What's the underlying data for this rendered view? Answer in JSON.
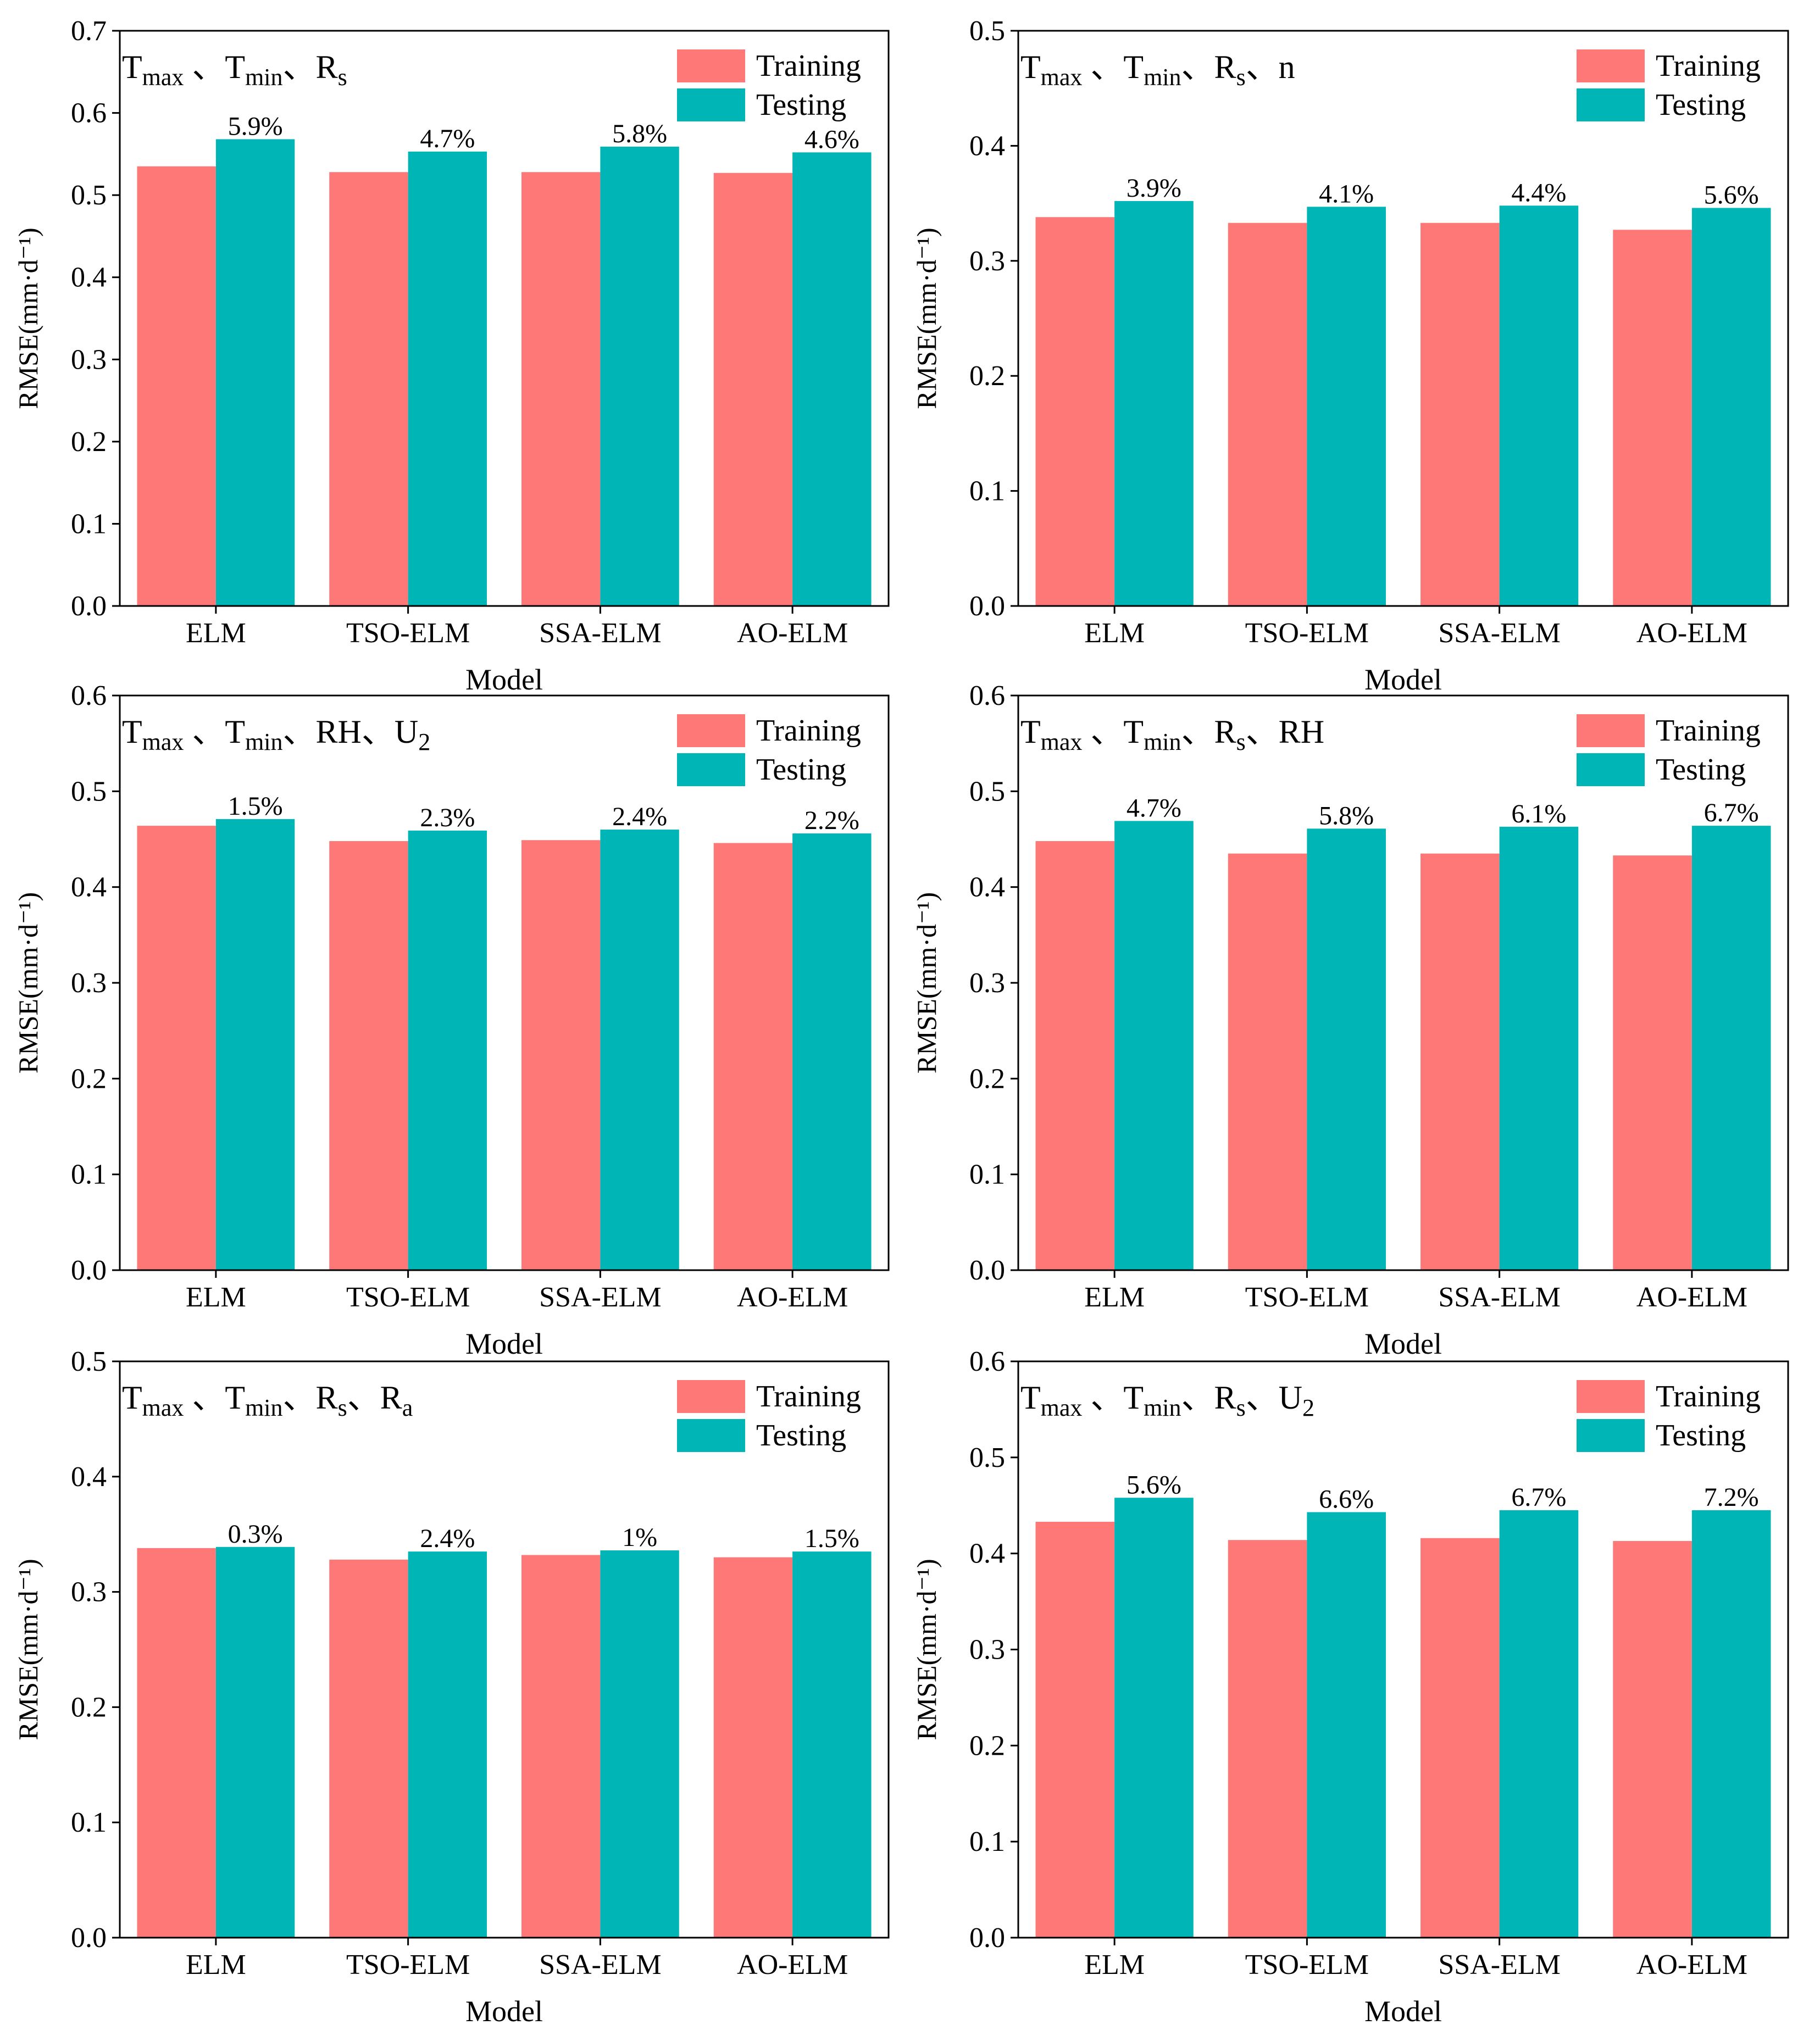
{
  "colors": {
    "training": "#ff7878",
    "testing": "#00b5b5",
    "axis": "#000000"
  },
  "chart_data": [
    {
      "type": "bar",
      "title": [
        {
          "t": "T"
        },
        {
          "t": "max",
          "sub": true
        },
        {
          "t": " 、T"
        },
        {
          "t": "min",
          "sub": true
        },
        {
          "t": "、R"
        },
        {
          "t": "s",
          "sub": true
        }
      ],
      "xlabel": "Model",
      "ylabel": "RMSE(mm·d⁻¹)",
      "ylim": [
        0,
        0.7
      ],
      "yticks": [
        "0.0",
        "0.1",
        "0.2",
        "0.3",
        "0.4",
        "0.5",
        "0.6",
        "0.7"
      ],
      "categories": [
        "ELM",
        "TSO-ELM",
        "SSA-ELM",
        "AO-ELM"
      ],
      "legend": [
        "Training",
        "Testing"
      ],
      "series": [
        {
          "name": "Training",
          "values": [
            0.535,
            0.528,
            0.528,
            0.527
          ]
        },
        {
          "name": "Testing",
          "values": [
            0.568,
            0.553,
            0.559,
            0.552
          ]
        }
      ],
      "labels": [
        "5.9%",
        "4.7%",
        "5.8%",
        "4.6%"
      ]
    },
    {
      "type": "bar",
      "title": [
        {
          "t": "T"
        },
        {
          "t": "max",
          "sub": true
        },
        {
          "t": " 、T"
        },
        {
          "t": "min",
          "sub": true
        },
        {
          "t": "、R"
        },
        {
          "t": "s",
          "sub": true
        },
        {
          "t": "、n"
        }
      ],
      "xlabel": "Model",
      "ylabel": "RMSE(mm·d⁻¹)",
      "ylim": [
        0,
        0.5
      ],
      "yticks": [
        "0.0",
        "0.1",
        "0.2",
        "0.3",
        "0.4",
        "0.5"
      ],
      "categories": [
        "ELM",
        "TSO-ELM",
        "SSA-ELM",
        "AO-ELM"
      ],
      "legend": [
        "Training",
        "Testing"
      ],
      "series": [
        {
          "name": "Training",
          "values": [
            0.338,
            0.333,
            0.333,
            0.327
          ]
        },
        {
          "name": "Testing",
          "values": [
            0.352,
            0.347,
            0.348,
            0.346
          ]
        }
      ],
      "labels": [
        "3.9%",
        "4.1%",
        "4.4%",
        "5.6%"
      ]
    },
    {
      "type": "bar",
      "title": [
        {
          "t": "T"
        },
        {
          "t": "max",
          "sub": true
        },
        {
          "t": " 、T"
        },
        {
          "t": "min",
          "sub": true
        },
        {
          "t": "、RH、U"
        },
        {
          "t": "2",
          "sub": true
        }
      ],
      "xlabel": "Model",
      "ylabel": "RMSE(mm·d⁻¹)",
      "ylim": [
        0,
        0.6
      ],
      "yticks": [
        "0.0",
        "0.1",
        "0.2",
        "0.3",
        "0.4",
        "0.5",
        "0.6"
      ],
      "categories": [
        "ELM",
        "TSO-ELM",
        "SSA-ELM",
        "AO-ELM"
      ],
      "legend": [
        "Training",
        "Testing"
      ],
      "series": [
        {
          "name": "Training",
          "values": [
            0.464,
            0.448,
            0.449,
            0.446
          ]
        },
        {
          "name": "Testing",
          "values": [
            0.471,
            0.459,
            0.46,
            0.456
          ]
        }
      ],
      "labels": [
        "1.5%",
        "2.3%",
        "2.4%",
        "2.2%"
      ]
    },
    {
      "type": "bar",
      "title": [
        {
          "t": "T"
        },
        {
          "t": "max",
          "sub": true
        },
        {
          "t": " 、T"
        },
        {
          "t": "min",
          "sub": true
        },
        {
          "t": "、R"
        },
        {
          "t": "s",
          "sub": true
        },
        {
          "t": "、RH"
        }
      ],
      "xlabel": "Model",
      "ylabel": "RMSE(mm·d⁻¹)",
      "ylim": [
        0,
        0.6
      ],
      "yticks": [
        "0.0",
        "0.1",
        "0.2",
        "0.3",
        "0.4",
        "0.5",
        "0.6"
      ],
      "categories": [
        "ELM",
        "TSO-ELM",
        "SSA-ELM",
        "AO-ELM"
      ],
      "legend": [
        "Training",
        "Testing"
      ],
      "series": [
        {
          "name": "Training",
          "values": [
            0.448,
            0.435,
            0.435,
            0.433
          ]
        },
        {
          "name": "Testing",
          "values": [
            0.469,
            0.461,
            0.463,
            0.464
          ]
        }
      ],
      "labels": [
        "4.7%",
        "5.8%",
        "6.1%",
        "6.7%"
      ]
    },
    {
      "type": "bar",
      "title": [
        {
          "t": "T"
        },
        {
          "t": "max",
          "sub": true
        },
        {
          "t": " 、T"
        },
        {
          "t": "min",
          "sub": true
        },
        {
          "t": "、R"
        },
        {
          "t": "s",
          "sub": true
        },
        {
          "t": "、R"
        },
        {
          "t": "a",
          "sub": true
        }
      ],
      "xlabel": "Model",
      "ylabel": "RMSE(mm·d⁻¹)",
      "ylim": [
        0,
        0.5
      ],
      "yticks": [
        "0.0",
        "0.1",
        "0.2",
        "0.3",
        "0.4",
        "0.5"
      ],
      "categories": [
        "ELM",
        "TSO-ELM",
        "SSA-ELM",
        "AO-ELM"
      ],
      "legend": [
        "Training",
        "Testing"
      ],
      "series": [
        {
          "name": "Training",
          "values": [
            0.338,
            0.328,
            0.332,
            0.33
          ]
        },
        {
          "name": "Testing",
          "values": [
            0.339,
            0.335,
            0.336,
            0.335
          ]
        }
      ],
      "labels": [
        "0.3%",
        "2.4%",
        "1%",
        "1.5%"
      ]
    },
    {
      "type": "bar",
      "title": [
        {
          "t": "T"
        },
        {
          "t": "max",
          "sub": true
        },
        {
          "t": " 、T"
        },
        {
          "t": "min",
          "sub": true
        },
        {
          "t": "、R"
        },
        {
          "t": "s",
          "sub": true
        },
        {
          "t": "、U"
        },
        {
          "t": "2",
          "sub": true
        }
      ],
      "xlabel": "Model",
      "ylabel": "RMSE(mm·d⁻¹)",
      "ylim": [
        0,
        0.6
      ],
      "yticks": [
        "0.0",
        "0.1",
        "0.2",
        "0.3",
        "0.4",
        "0.5",
        "0.6"
      ],
      "categories": [
        "ELM",
        "TSO-ELM",
        "SSA-ELM",
        "AO-ELM"
      ],
      "legend": [
        "Training",
        "Testing"
      ],
      "series": [
        {
          "name": "Training",
          "values": [
            0.433,
            0.414,
            0.416,
            0.413
          ]
        },
        {
          "name": "Testing",
          "values": [
            0.458,
            0.443,
            0.445,
            0.445
          ]
        }
      ],
      "labels": [
        "5.6%",
        "6.6%",
        "6.7%",
        "7.2%"
      ]
    }
  ]
}
